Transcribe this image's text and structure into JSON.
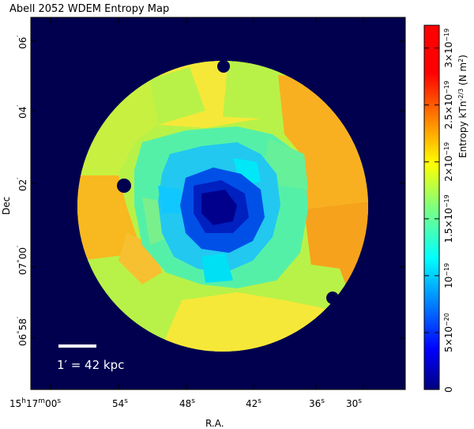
{
  "title": "Abell 2052 WDEM Entropy Map",
  "axes": {
    "x_label": "R.A.",
    "y_label": "Dec",
    "x_ticks": [
      {
        "main": "15",
        "sup1": "h",
        "mid": "17",
        "sup2": "m",
        "tail": "00",
        "sup3": "s"
      },
      {
        "main": "54",
        "sup1": "s"
      },
      {
        "main": "48",
        "sup1": "s"
      },
      {
        "main": "42",
        "sup1": "s"
      },
      {
        "main": "36",
        "sup1": "s"
      },
      {
        "main": "30",
        "sup1": "s"
      }
    ],
    "y_ticks": [
      {
        "deg": "",
        "main": "06",
        "sup": "′"
      },
      {
        "deg": "",
        "main": "04",
        "sup": "′"
      },
      {
        "deg": "",
        "main": "02",
        "sup": "′"
      },
      {
        "deg": "07",
        "degsym": "°",
        "main": "00",
        "sup": "′"
      },
      {
        "deg": "06",
        "degsym": "°",
        "main": "58",
        "sup": "′"
      }
    ]
  },
  "scalebar": {
    "label": "1′ = 42 kpc"
  },
  "colorbar": {
    "label_main": "Entropy kT",
    "label_mid": "n",
    "label_exp": "-2/3",
    "label_unit": " (N m",
    "label_unit_exp": "2",
    "label_close": ")",
    "ticks": [
      {
        "value": 0,
        "text": "0",
        "exp": ""
      },
      {
        "value": 5e-20,
        "text": "5×10",
        "exp": "−20"
      },
      {
        "value": 1e-19,
        "text": "10",
        "exp": "−19"
      },
      {
        "value": 1.5e-19,
        "text": "1.5×10",
        "exp": "−19"
      },
      {
        "value": 2e-19,
        "text": "2×10",
        "exp": "−19"
      },
      {
        "value": 2.5e-19,
        "text": "2.5×10",
        "exp": "−19"
      },
      {
        "value": 3e-19,
        "text": "3×10",
        "exp": "−19"
      }
    ],
    "range": [
      0,
      3.2e-19
    ],
    "colormap": "jet"
  },
  "colors": {
    "background": "#00004f",
    "deep_core": "#00008c",
    "core": "#0033e0",
    "inner": "#00d8f0",
    "mid_ring": "#55f0a8",
    "outer_green": "#b8f248",
    "outer_yellow": "#f6e838",
    "outer_orange": "#f8b820",
    "orange_east": "#f6a21c"
  }
}
